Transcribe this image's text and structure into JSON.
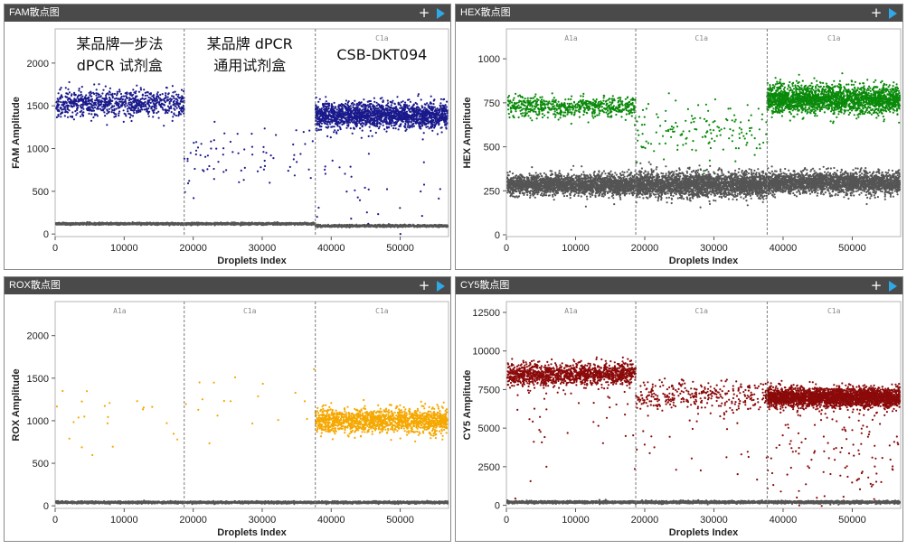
{
  "charts": [
    {
      "title": "FAM散点图",
      "type": "scatter",
      "xlabel": "Droplets Index",
      "ylabel": "FAM Amplitude",
      "xlim": [
        0,
        57000
      ],
      "ylim": [
        -30,
        2400
      ],
      "yticks": [
        0,
        500,
        1000,
        1500,
        2000
      ],
      "xticks": [
        0,
        10000,
        20000,
        30000,
        40000,
        50000
      ],
      "dividers": [
        18700,
        37700
      ],
      "region_labels": [
        "",
        "",
        "C1a"
      ],
      "annotations": [
        {
          "lines": [
            "某品牌一步法",
            "dPCR 试剂盒"
          ]
        },
        {
          "lines": [
            "某品牌 dPCR",
            "通用试剂盒"
          ]
        },
        {
          "lines": [
            "CSB-DKT094"
          ]
        }
      ],
      "color": "#1a1a8c",
      "negative_color": "#555555",
      "clusters": [
        {
          "x": [
            0,
            18700
          ],
          "y": 1530,
          "sd": 75,
          "n": 850,
          "color": "#1a1a8c"
        },
        {
          "x": [
            0,
            18700
          ],
          "y": 120,
          "sd": 6,
          "n": 1100,
          "color": "#555555"
        },
        {
          "x": [
            18700,
            37700
          ],
          "y": 120,
          "sd": 6,
          "n": 1100,
          "color": "#555555"
        },
        {
          "x": [
            18700,
            37700
          ],
          "y": 950,
          "sd": 200,
          "n": 75,
          "color": "#1a1a8c"
        },
        {
          "x": [
            37700,
            57000
          ],
          "y": 1390,
          "sd": 75,
          "n": 1900,
          "color": "#1a1a8c"
        },
        {
          "x": [
            37700,
            57000
          ],
          "y": 95,
          "sd": 6,
          "n": 1100,
          "color": "#555555"
        },
        {
          "x": [
            37700,
            57000
          ],
          "y": 550,
          "sd": 320,
          "n": 35,
          "color": "#1a1a8c"
        }
      ]
    },
    {
      "title": "HEX散点图",
      "type": "scatter",
      "xlabel": "Droplets Index",
      "ylabel": "HEX Amplitude",
      "xlim": [
        0,
        57000
      ],
      "ylim": [
        -10,
        1170
      ],
      "yticks": [
        0,
        250,
        500,
        750,
        1000
      ],
      "xticks": [
        0,
        10000,
        20000,
        30000,
        40000,
        50000
      ],
      "dividers": [
        18700,
        37700
      ],
      "region_labels": [
        "A1a",
        "C1a",
        "C1a"
      ],
      "color": "#0a8a0a",
      "negative_color": "#555555",
      "clusters": [
        {
          "x": [
            0,
            18700
          ],
          "y": 730,
          "sd": 30,
          "n": 650,
          "color": "#0a8a0a"
        },
        {
          "x": [
            0,
            18700
          ],
          "y": 285,
          "sd": 28,
          "n": 2400,
          "color": "#555555"
        },
        {
          "x": [
            18700,
            37700
          ],
          "y": 285,
          "sd": 35,
          "n": 2600,
          "color": "#555555"
        },
        {
          "x": [
            18700,
            37700
          ],
          "y": 600,
          "sd": 80,
          "n": 150,
          "color": "#0a8a0a"
        },
        {
          "x": [
            37700,
            57000
          ],
          "y": 770,
          "sd": 40,
          "n": 2200,
          "color": "#0a8a0a"
        },
        {
          "x": [
            37700,
            57000
          ],
          "y": 295,
          "sd": 30,
          "n": 2400,
          "color": "#555555"
        }
      ]
    },
    {
      "title": "ROX散点图",
      "type": "scatter",
      "xlabel": "Droplets Index",
      "ylabel": "ROX Amplitude",
      "xlim": [
        0,
        57000
      ],
      "ylim": [
        -30,
        2400
      ],
      "yticks": [
        0,
        500,
        1000,
        1500,
        2000
      ],
      "xticks": [
        0,
        10000,
        20000,
        30000,
        40000,
        50000
      ],
      "dividers": [
        18700,
        37700
      ],
      "region_labels": [
        "A1a",
        "C1a",
        "C1a"
      ],
      "color": "#f5a800",
      "negative_color": "#555555",
      "clusters": [
        {
          "x": [
            0,
            18700
          ],
          "y": 40,
          "sd": 6,
          "n": 1100,
          "color": "#555555"
        },
        {
          "x": [
            0,
            18700
          ],
          "y": 1050,
          "sd": 220,
          "n": 22,
          "color": "#f5a800"
        },
        {
          "x": [
            18700,
            37700
          ],
          "y": 40,
          "sd": 6,
          "n": 1100,
          "color": "#555555"
        },
        {
          "x": [
            18700,
            37700
          ],
          "y": 1300,
          "sd": 250,
          "n": 18,
          "color": "#f5a800"
        },
        {
          "x": [
            37700,
            57000
          ],
          "y": 1000,
          "sd": 70,
          "n": 1500,
          "color": "#f5a800"
        },
        {
          "x": [
            37700,
            57000
          ],
          "y": 40,
          "sd": 6,
          "n": 1100,
          "color": "#555555"
        }
      ]
    },
    {
      "title": "CY5散点图",
      "type": "scatter",
      "xlabel": "Droplets Index",
      "ylabel": "CY5 Amplitude",
      "xlim": [
        0,
        57000
      ],
      "ylim": [
        -200,
        13200
      ],
      "yticks": [
        0,
        2500,
        5000,
        7500,
        10000,
        12500
      ],
      "xticks": [
        0,
        10000,
        20000,
        30000,
        40000,
        50000
      ],
      "dividers": [
        18700,
        37700
      ],
      "region_labels": [
        "A1a",
        "C1a",
        "C1a"
      ],
      "color": "#8b0a0a",
      "negative_color": "#555555",
      "clusters": [
        {
          "x": [
            0,
            18700
          ],
          "y": 8500,
          "sd": 380,
          "n": 1300,
          "color": "#8b0a0a"
        },
        {
          "x": [
            0,
            18700
          ],
          "y": 5500,
          "sd": 1800,
          "n": 40,
          "color": "#8b0a0a"
        },
        {
          "x": [
            0,
            18700
          ],
          "y": 200,
          "sd": 40,
          "n": 1100,
          "color": "#555555"
        },
        {
          "x": [
            18700,
            37700
          ],
          "y": 7100,
          "sd": 500,
          "n": 320,
          "color": "#8b0a0a"
        },
        {
          "x": [
            18700,
            37700
          ],
          "y": 4500,
          "sd": 1700,
          "n": 35,
          "color": "#8b0a0a"
        },
        {
          "x": [
            18700,
            37700
          ],
          "y": 200,
          "sd": 40,
          "n": 1100,
          "color": "#555555"
        },
        {
          "x": [
            37700,
            57000
          ],
          "y": 7000,
          "sd": 320,
          "n": 2800,
          "color": "#8b0a0a"
        },
        {
          "x": [
            37700,
            57000
          ],
          "y": 3500,
          "sd": 1900,
          "n": 130,
          "color": "#8b0a0a"
        },
        {
          "x": [
            37700,
            57000
          ],
          "y": 200,
          "sd": 40,
          "n": 1100,
          "color": "#555555"
        }
      ]
    }
  ]
}
